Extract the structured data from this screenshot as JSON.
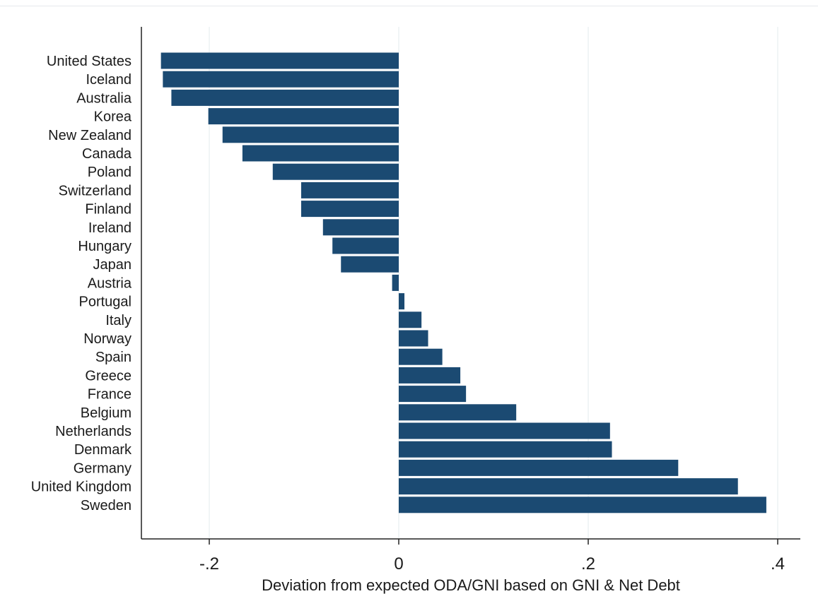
{
  "chart_data": {
    "type": "bar",
    "orientation": "horizontal",
    "title": "",
    "xlabel": "Deviation from expected ODA/GNI based on GNI & Net Debt",
    "ylabel": "",
    "xlim": [
      -0.27,
      0.42
    ],
    "x_ticks": [
      -0.2,
      0,
      0.2,
      0.4
    ],
    "x_tick_labels": [
      "-.2",
      "0",
      ".2",
      ".4"
    ],
    "grid": "vertical",
    "bar_color": "#1b4a72",
    "categories": [
      "United States",
      "Iceland",
      "Australia",
      "Korea",
      "New Zealand",
      "Canada",
      "Poland",
      "Switzerland",
      "Finland",
      "Ireland",
      "Hungary",
      "Japan",
      "Austria",
      "Portugal",
      "Italy",
      "Norway",
      "Spain",
      "Greece",
      "France",
      "Belgium",
      "Netherlands",
      "Denmark",
      "Germany",
      "United Kingdom",
      "Sweden"
    ],
    "values": [
      -0.251,
      -0.249,
      -0.24,
      -0.201,
      -0.186,
      -0.165,
      -0.133,
      -0.103,
      -0.103,
      -0.08,
      -0.07,
      -0.061,
      -0.007,
      0.006,
      0.024,
      0.031,
      0.046,
      0.065,
      0.071,
      0.124,
      0.223,
      0.225,
      0.295,
      0.358,
      0.388
    ]
  }
}
